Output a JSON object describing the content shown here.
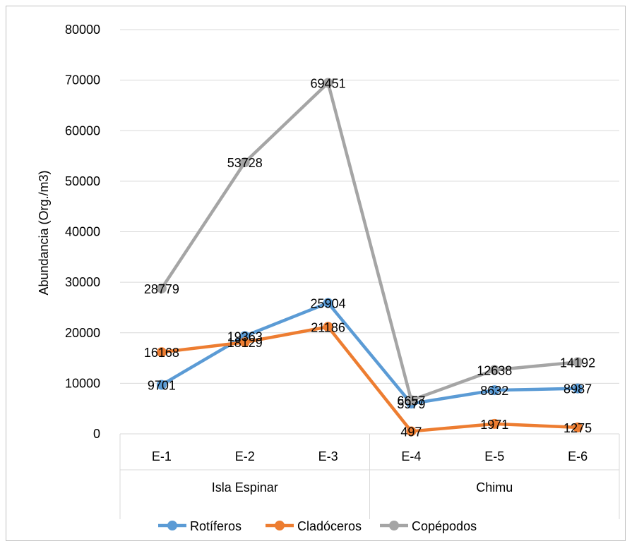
{
  "chart_data": {
    "type": "line",
    "title": "",
    "xlabel": "",
    "ylabel": "Abundancia (Org./m3)",
    "ylim": [
      0,
      80000
    ],
    "yticks": [
      0,
      10000,
      20000,
      30000,
      40000,
      50000,
      60000,
      70000,
      80000
    ],
    "grid": true,
    "legend_position": "bottom",
    "categories": [
      "E-1",
      "E-2",
      "E-3",
      "E-4",
      "E-5",
      "E-6"
    ],
    "groups": [
      {
        "label": "Isla Espinar",
        "categories": [
          "E-1",
          "E-2",
          "E-3"
        ]
      },
      {
        "label": "Chimu",
        "categories": [
          "E-4",
          "E-5",
          "E-6"
        ]
      }
    ],
    "series": [
      {
        "name": "Rotíferos",
        "color": "#5b9bd5",
        "values": [
          9701,
          19363,
          25904,
          5979,
          8632,
          8987
        ]
      },
      {
        "name": "Cladóceros",
        "color": "#ed7d31",
        "values": [
          16168,
          18129,
          21186,
          497,
          1971,
          1275
        ]
      },
      {
        "name": "Copépodos",
        "color": "#a5a5a5",
        "values": [
          28779,
          53728,
          69451,
          6657,
          12638,
          14192
        ]
      }
    ]
  }
}
